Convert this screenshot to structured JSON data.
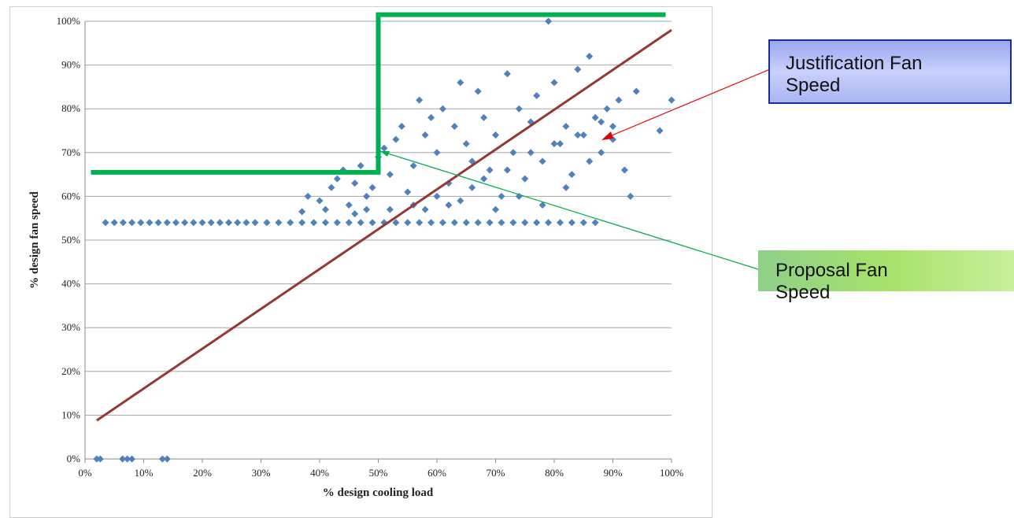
{
  "chart_data": {
    "type": "scatter",
    "x_label": "% design cooling load",
    "y_label": "% design fan speed",
    "xlim": [
      0,
      100
    ],
    "ylim": [
      0,
      100
    ],
    "grid": true,
    "xticks": [
      {
        "value": 0,
        "label": "0%"
      },
      {
        "value": 10,
        "label": "10%"
      },
      {
        "value": 20,
        "label": "20%"
      },
      {
        "value": 30,
        "label": "30%"
      },
      {
        "value": 40,
        "label": "40%"
      },
      {
        "value": 50,
        "label": "50%"
      },
      {
        "value": 60,
        "label": "60%"
      },
      {
        "value": 70,
        "label": "70%"
      },
      {
        "value": 80,
        "label": "80%"
      },
      {
        "value": 90,
        "label": "90%"
      },
      {
        "value": 100,
        "label": "100%"
      }
    ],
    "yticks": [
      {
        "value": 0,
        "label": "0%"
      },
      {
        "value": 10,
        "label": "10%"
      },
      {
        "value": 20,
        "label": "20%"
      },
      {
        "value": 30,
        "label": "30%"
      },
      {
        "value": 40,
        "label": "40%"
      },
      {
        "value": 50,
        "label": "50%"
      },
      {
        "value": 60,
        "label": "60%"
      },
      {
        "value": 70,
        "label": "70%"
      },
      {
        "value": 80,
        "label": "80%"
      },
      {
        "value": 90,
        "label": "90%"
      },
      {
        "value": 100,
        "label": "100%"
      }
    ],
    "series": [
      {
        "type": "scatter",
        "color": "#4f81bd",
        "x": [
          2,
          2.6,
          6.4,
          7.2,
          8,
          13.2,
          14,
          3.5,
          5,
          6.5,
          8,
          9.5,
          11,
          12.5,
          14,
          15.5,
          17,
          18.5,
          20,
          21.5,
          23,
          24.5,
          26,
          27.5,
          29,
          31,
          33,
          35,
          37,
          39,
          41,
          43,
          45,
          47,
          49,
          51,
          53,
          55,
          57,
          59,
          61,
          63,
          65,
          67,
          69,
          71,
          73,
          75,
          77,
          79,
          81,
          83,
          85,
          87,
          37,
          38,
          40,
          41,
          42,
          43,
          44,
          45,
          46,
          47,
          48,
          49,
          50,
          51,
          52,
          53,
          54,
          55,
          56,
          57,
          58,
          59,
          60,
          61,
          62,
          63,
          64,
          65,
          66,
          67,
          68,
          69,
          70,
          71,
          72,
          73,
          74,
          75,
          76,
          77,
          78,
          79,
          80,
          81,
          82,
          83,
          84,
          85,
          86,
          87,
          88,
          89,
          90,
          91,
          92,
          93,
          94,
          98,
          100,
          62,
          66,
          70,
          74,
          78,
          82,
          86,
          90,
          64,
          68,
          72,
          76,
          80,
          84,
          88,
          58,
          60,
          56,
          52,
          48,
          46
        ],
        "values": [
          0,
          0,
          0,
          0,
          0,
          0,
          0,
          54,
          54,
          54,
          54,
          54,
          54,
          54,
          54,
          54,
          54,
          54,
          54,
          54,
          54,
          54,
          54,
          54,
          54,
          54,
          54,
          54,
          54,
          54,
          54,
          54,
          54,
          54,
          54,
          54,
          54,
          54,
          54,
          54,
          54,
          54,
          54,
          54,
          54,
          54,
          54,
          54,
          54,
          54,
          54,
          54,
          54,
          54,
          56.5,
          60,
          59,
          57,
          62,
          64,
          66,
          58,
          63,
          67,
          60,
          62,
          69,
          71,
          65,
          73,
          76,
          61,
          67,
          82,
          74,
          78,
          70,
          80,
          63,
          76,
          86,
          72,
          68,
          84,
          78,
          66,
          74,
          60,
          88,
          70,
          80,
          64,
          77,
          83,
          68,
          100,
          86,
          72,
          76,
          65,
          89,
          74,
          92,
          78,
          70,
          80,
          76,
          82,
          66,
          60,
          84,
          75,
          82,
          58,
          62,
          57,
          60,
          58,
          62,
          68,
          73,
          59,
          64,
          66,
          70,
          72,
          74,
          77,
          57,
          60,
          58,
          57,
          57,
          56
        ]
      },
      {
        "type": "line",
        "color": "#953735",
        "x": [
          2,
          100
        ],
        "values": [
          8.8,
          98
        ]
      },
      {
        "type": "line",
        "color": "#00b050",
        "x": [
          1,
          50,
          50,
          99
        ],
        "values": [
          65.5,
          65.5,
          101.5,
          101.5
        ]
      }
    ],
    "annotations": [
      "Justification Fan Speed",
      "Proposal Fan Speed"
    ]
  }
}
